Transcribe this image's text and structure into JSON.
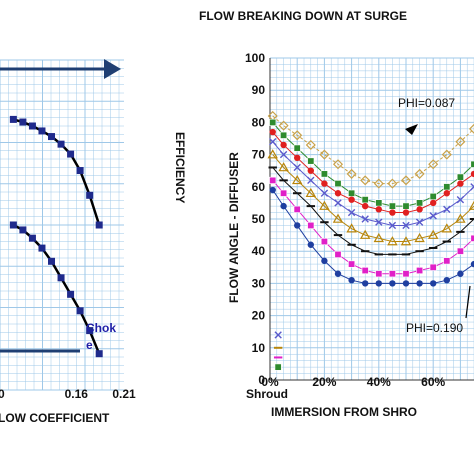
{
  "chart_data": [
    {
      "type": "line",
      "title": "",
      "xlabel": "LOW COEFFICIENT",
      "ylabel": "EFFICIENCY",
      "x_ticks": [
        "0.16",
        "0.21"
      ],
      "xlim": [
        0.08,
        0.21
      ],
      "ylim": [
        0,
        1
      ],
      "grid": true,
      "annotation": "Chok e",
      "colors": {
        "curve": "#000000",
        "marker": "#1f2a8c",
        "arrow": "#1f3f73",
        "grid": "#9fc8e8"
      },
      "series": [
        {
          "x": [
            0.094,
            0.104,
            0.114,
            0.124,
            0.134,
            0.144,
            0.154,
            0.164,
            0.174,
            0.184
          ],
          "y": [
            0.82,
            0.812,
            0.8,
            0.785,
            0.768,
            0.745,
            0.715,
            0.665,
            0.59,
            0.5
          ]
        },
        {
          "x": [
            0.094,
            0.104,
            0.114,
            0.124,
            0.134,
            0.144,
            0.154,
            0.164,
            0.174,
            0.184
          ],
          "y": [
            0.5,
            0.485,
            0.46,
            0.43,
            0.39,
            0.34,
            0.29,
            0.24,
            0.18,
            0.11
          ]
        }
      ]
    },
    {
      "type": "line",
      "title": "FLOW BREAKING DOWN AT SURGE",
      "xlabel": "IMMERSION FROM SHRO",
      "ylabel": "FLOW ANGLE - DIFFUSER",
      "x_ticks": [
        "0%",
        "20%",
        "40%",
        "60%"
      ],
      "x_extra_label": "Shroud",
      "y_ticks": [
        "0",
        "10",
        "20",
        "30",
        "40",
        "50",
        "60",
        "70",
        "80",
        "90",
        "100"
      ],
      "xlim": [
        0,
        75
      ],
      "ylim": [
        0,
        100
      ],
      "grid": true,
      "annotations": [
        "PHI=0.087",
        "PHI=0.190"
      ],
      "series": [
        {
          "color": "#c9a24a",
          "marker": "diamond",
          "x": [
            1,
            5,
            10,
            15,
            20,
            25,
            30,
            35,
            40,
            45,
            50,
            55,
            60,
            65,
            70,
            75
          ],
          "y": [
            82,
            79,
            76,
            73,
            70,
            67,
            64,
            62,
            61,
            61,
            62,
            64,
            67,
            70,
            74,
            78
          ]
        },
        {
          "color": "#2e8b2e",
          "marker": "square",
          "x": [
            1,
            5,
            10,
            15,
            20,
            25,
            30,
            35,
            40,
            45,
            50,
            55,
            60,
            65,
            70,
            75
          ],
          "y": [
            80,
            76,
            72,
            68,
            64,
            61,
            58,
            56,
            55,
            54,
            54,
            55,
            57,
            60,
            63,
            67
          ]
        },
        {
          "color": "#e02020",
          "marker": "circle",
          "x": [
            1,
            5,
            10,
            15,
            20,
            25,
            30,
            35,
            40,
            45,
            50,
            55,
            60,
            65,
            70,
            75
          ],
          "y": [
            77,
            73,
            69,
            65,
            61,
            58,
            56,
            54,
            53,
            52,
            52,
            53,
            55,
            58,
            61,
            64
          ]
        },
        {
          "color": "#5a5acc",
          "marker": "x",
          "x": [
            1,
            5,
            10,
            15,
            20,
            25,
            30,
            35,
            40,
            45,
            50,
            55,
            60,
            65,
            70,
            75
          ],
          "y": [
            74,
            70,
            66,
            62,
            58,
            55,
            52,
            50,
            49,
            48,
            48,
            49,
            51,
            53,
            56,
            60
          ]
        },
        {
          "color": "#b8860b",
          "marker": "triangle",
          "x": [
            1,
            5,
            10,
            15,
            20,
            25,
            30,
            35,
            40,
            45,
            50,
            55,
            60,
            65,
            70,
            75
          ],
          "y": [
            70,
            66,
            62,
            58,
            54,
            50,
            47,
            45,
            44,
            43,
            43,
            44,
            45,
            47,
            50,
            54
          ]
        },
        {
          "color": "#111111",
          "marker": "dash",
          "x": [
            1,
            5,
            10,
            15,
            20,
            25,
            30,
            35,
            40,
            45,
            50,
            55,
            60,
            65,
            70,
            75
          ],
          "y": [
            66,
            62,
            58,
            54,
            49,
            45,
            42,
            40,
            39,
            39,
            39,
            40,
            41,
            43,
            46,
            50
          ]
        },
        {
          "color": "#e020c8",
          "marker": "square",
          "x": [
            1,
            5,
            10,
            15,
            20,
            25,
            30,
            35,
            40,
            45,
            50,
            55,
            60,
            65,
            70,
            75
          ],
          "y": [
            62,
            58,
            53,
            48,
            43,
            39,
            36,
            34,
            33,
            33,
            33,
            34,
            35,
            37,
            40,
            44
          ]
        },
        {
          "color": "#1f3fa0",
          "marker": "circle",
          "x": [
            1,
            5,
            10,
            15,
            20,
            25,
            30,
            35,
            40,
            45,
            50,
            55,
            60,
            65,
            70,
            75
          ],
          "y": [
            59,
            54,
            48,
            42,
            37,
            33,
            31,
            30,
            30,
            30,
            30,
            30,
            30,
            31,
            33,
            36
          ]
        }
      ],
      "stray_markers": [
        {
          "color": "#5a5acc",
          "marker": "x",
          "x": 3,
          "y": 14
        },
        {
          "color": "#b8860b",
          "marker": "dash",
          "x": 3,
          "y": 10
        },
        {
          "color": "#e020c8",
          "marker": "dash",
          "x": 3,
          "y": 7
        },
        {
          "color": "#2e8b2e",
          "marker": "square",
          "x": 3,
          "y": 4
        }
      ]
    }
  ]
}
